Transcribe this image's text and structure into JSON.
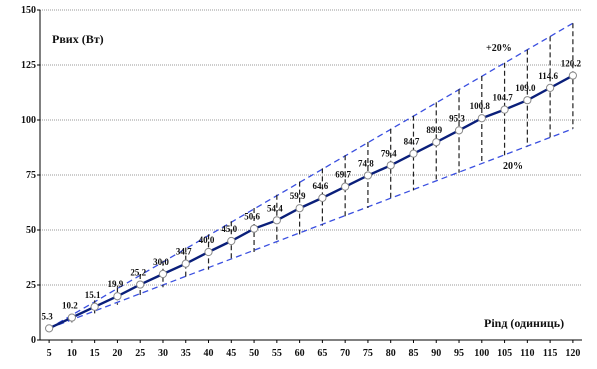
{
  "chart_data": {
    "type": "line",
    "title": "",
    "ylabel": "Pвих (Вт)",
    "xlabel": "Ріnд (одиниць)",
    "ylim": [
      0,
      150
    ],
    "yticks": [
      "0",
      "25",
      "50",
      "75",
      "100",
      "125",
      "150"
    ],
    "x": [
      5,
      10,
      15,
      20,
      25,
      30,
      35,
      40,
      45,
      50,
      55,
      60,
      65,
      70,
      75,
      80,
      85,
      90,
      95,
      100,
      105,
      110,
      115,
      120
    ],
    "series": [
      {
        "values": [
          5.3,
          10.2,
          15.1,
          19.9,
          25.2,
          30.0,
          34.7,
          40.0,
          45.0,
          50.6,
          54.4,
          59.9,
          64.6,
          69.7,
          74.8,
          79.4,
          84.7,
          89.9,
          95.3,
          100.8,
          104.7,
          109.0,
          114.6,
          120.2
        ],
        "labels": [
          "5.3",
          "10.2",
          "15.1",
          "19.9",
          "25.2",
          "30.0",
          "34.7",
          "40.0",
          "45.0",
          "50.6",
          "54.4",
          "59.9",
          "64.6",
          "69.7",
          "74.8",
          "79.4",
          "84.7",
          "89.9",
          "95.3",
          "100.8",
          "104.7",
          "109.0",
          "114.6",
          "120.2"
        ],
        "color": "#0a1f7a"
      }
    ],
    "band": {
      "upper_label": "+20%",
      "lower_label": "20%",
      "upper_factor": 1.2,
      "lower_factor": 0.8,
      "color": "#3a4fe0"
    },
    "grid": true
  }
}
